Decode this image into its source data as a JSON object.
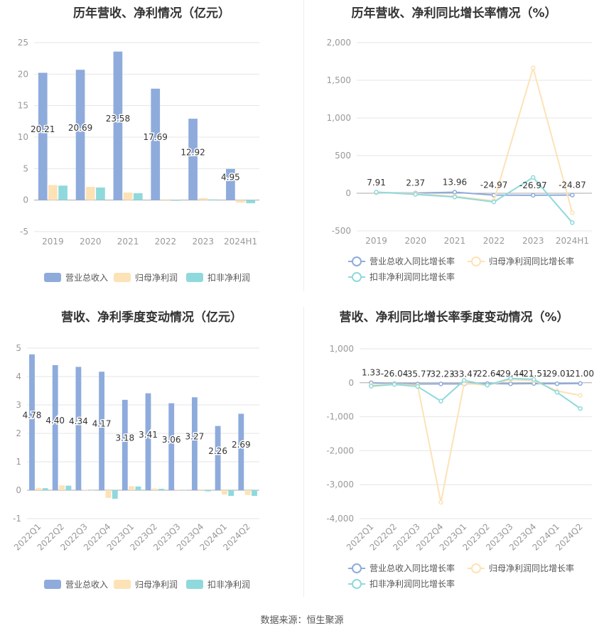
{
  "footer": {
    "source": "数据来源：恒生聚源"
  },
  "chart_data": [
    {
      "id": "annual_rev_profit",
      "type": "bar",
      "title": "历年营收、净利情况（亿元）",
      "categories": [
        "2019",
        "2020",
        "2021",
        "2022",
        "2023",
        "2024H1"
      ],
      "ylim": [
        -5,
        25
      ],
      "yticks": [
        -5,
        0,
        5,
        10,
        15,
        20,
        25
      ],
      "series": [
        {
          "name": "营业总收入",
          "color": "#8eabdc",
          "values": [
            20.21,
            20.69,
            23.58,
            17.69,
            12.92,
            4.95
          ],
          "labels": [
            "20.21",
            "20.69",
            "23.58",
            "17.69",
            "12.92",
            "4.95"
          ]
        },
        {
          "name": "归母净利润",
          "color": "#fde2b6",
          "values": [
            2.4,
            2.1,
            1.2,
            -0.1,
            0.3,
            -0.4
          ]
        },
        {
          "name": "扣非净利润",
          "color": "#8fd9dc",
          "values": [
            2.3,
            2.0,
            1.1,
            -0.1,
            0.1,
            -0.5
          ]
        }
      ],
      "grid": true,
      "legend": "bottom"
    },
    {
      "id": "annual_growth",
      "type": "line",
      "title": "历年营收、净利同比增长率情况（%）",
      "categories": [
        "2019",
        "2020",
        "2021",
        "2022",
        "2023",
        "2024H1"
      ],
      "ylim": [
        -500,
        2000
      ],
      "yticks": [
        -500,
        0,
        500,
        1000,
        1500,
        2000
      ],
      "ytick_labels": [
        "-500",
        "0",
        "500",
        "1,000",
        "1,500",
        "2,000"
      ],
      "series": [
        {
          "name": "营业总收入同比增长率",
          "color": "#8eabdc",
          "values": [
            7.91,
            2.37,
            13.96,
            -24.97,
            -26.97,
            -24.87
          ],
          "labels": [
            "7.91",
            "2.37",
            "13.96",
            "-24.97",
            "-26.97",
            "-24.87"
          ]
        },
        {
          "name": "归母净利润同比增长率",
          "color": "#fde2b6",
          "values": [
            10,
            -5,
            -40,
            -100,
            1665,
            -260
          ]
        },
        {
          "name": "扣非净利润同比增长率",
          "color": "#8fd9dc",
          "values": [
            15,
            -15,
            -50,
            -115,
            210,
            -390
          ]
        }
      ],
      "grid": true,
      "legend": "bottom"
    },
    {
      "id": "quarterly_rev_profit",
      "type": "bar",
      "title": "营收、净利季度变动情况（亿元）",
      "categories": [
        "2022Q1",
        "2022Q2",
        "2022Q3",
        "2022Q4",
        "2023Q1",
        "2023Q2",
        "2023Q3",
        "2023Q4",
        "2024Q1",
        "2024Q2"
      ],
      "ylim": [
        -1,
        5
      ],
      "yticks": [
        -1,
        0,
        1,
        2,
        3,
        4,
        5
      ],
      "series": [
        {
          "name": "营业总收入",
          "color": "#8eabdc",
          "values": [
            4.78,
            4.4,
            4.34,
            4.17,
            3.18,
            3.41,
            3.06,
            3.27,
            2.26,
            2.69
          ],
          "labels": [
            "4.78",
            "4.40",
            "4.34",
            "4.17",
            "3.18",
            "3.41",
            "3.06",
            "3.27",
            "2.26",
            "2.69"
          ]
        },
        {
          "name": "归母净利润",
          "color": "#fde2b6",
          "values": [
            0.08,
            0.17,
            0.01,
            -0.27,
            0.14,
            0.06,
            0.02,
            0.03,
            -0.15,
            -0.17
          ]
        },
        {
          "name": "扣非净利润",
          "color": "#8fd9dc",
          "values": [
            0.07,
            0.16,
            0.0,
            -0.3,
            0.13,
            0.05,
            0.01,
            -0.04,
            -0.2,
            -0.2
          ]
        }
      ],
      "grid": true,
      "legend": "bottom"
    },
    {
      "id": "quarterly_growth",
      "type": "line",
      "title": "营收、净利同比增长率季度变动情况（%）",
      "categories": [
        "2022Q1",
        "2022Q2",
        "2022Q3",
        "2022Q4",
        "2023Q1",
        "2023Q2",
        "2023Q3",
        "2023Q4",
        "2024Q1",
        "2024Q2"
      ],
      "ylim": [
        -4000,
        1000
      ],
      "yticks": [
        -4000,
        -3000,
        -2000,
        -1000,
        0,
        1000
      ],
      "ytick_labels": [
        "-4,000",
        "-3,000",
        "-2,000",
        "-1,000",
        "0",
        "1,000"
      ],
      "series": [
        {
          "name": "营业总收入同比增长率",
          "color": "#8eabdc",
          "values": [
            1.33,
            -26.04,
            -35.77,
            -32.23,
            -33.47,
            -22.64,
            -29.44,
            -21.51,
            -29.01,
            -21.0
          ],
          "labels": [
            "1.33",
            "-26.04",
            "-35.77",
            "-32.23",
            "-33.47",
            "-22.64",
            "-29.44",
            "-21.51",
            "-29.01",
            "-21.00"
          ]
        },
        {
          "name": "归母净利润同比增长率",
          "color": "#fde2b6",
          "values": [
            -60,
            -40,
            -80,
            -3520,
            -20,
            -70,
            90,
            60,
            -240,
            -370
          ]
        },
        {
          "name": "扣非净利润同比增长率",
          "color": "#8fd9dc",
          "values": [
            -100,
            -50,
            -110,
            -540,
            70,
            -70,
            130,
            100,
            -280,
            -760
          ]
        }
      ],
      "grid": true,
      "legend": "bottom"
    }
  ]
}
